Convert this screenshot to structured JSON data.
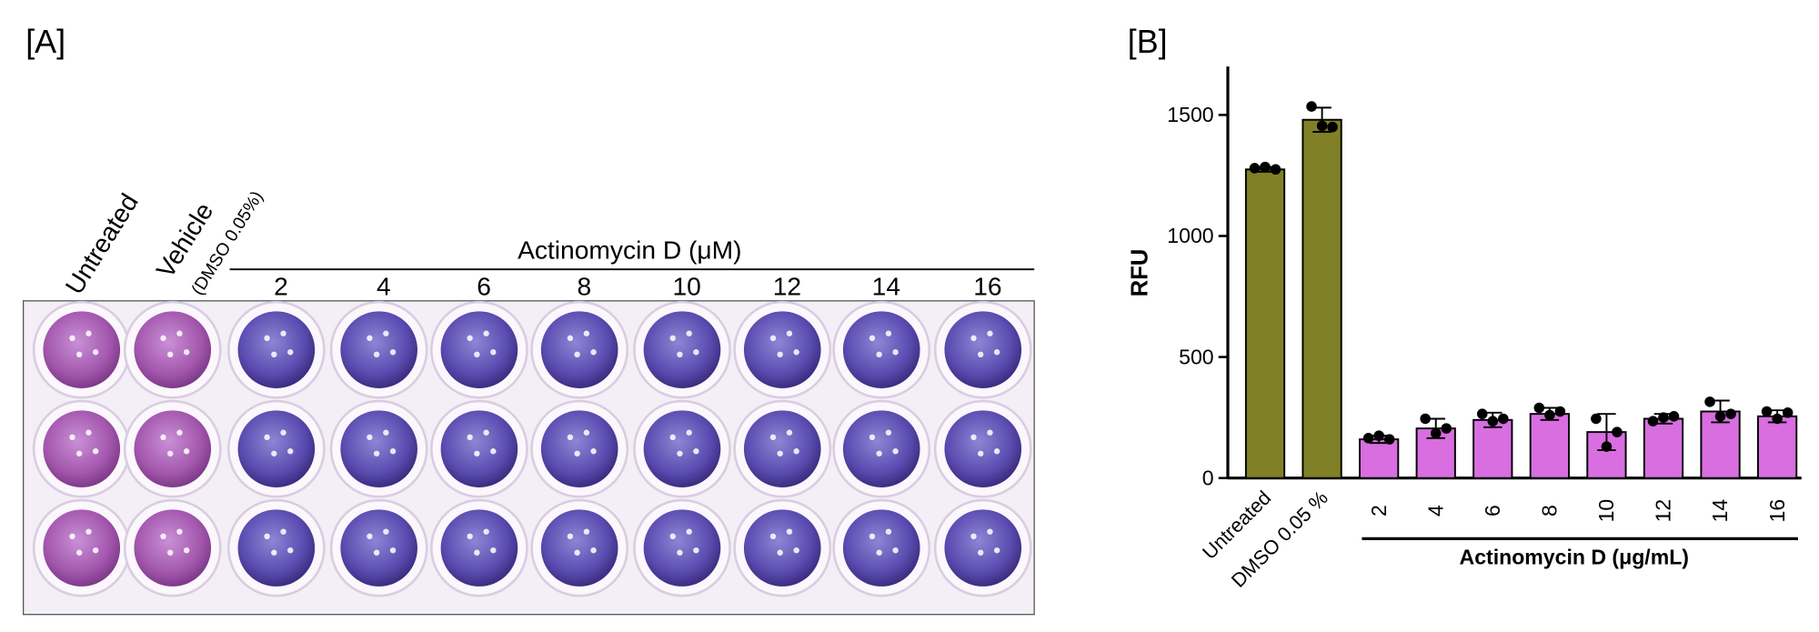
{
  "panel_a": {
    "label": "[A]",
    "untreated_label": "Untreated",
    "vehicle_label": "Vehicle",
    "vehicle_note": "(DMSO 0.05%)",
    "group_label": "Actinomycin D (μM)",
    "concentrations": [
      2,
      4,
      6,
      8,
      10,
      12,
      14,
      16
    ]
  },
  "chart_data": {
    "type": "bar",
    "label": "[B]",
    "y_label": "RFU",
    "group_label": "Actinomycin D (μg/mL)",
    "categories": [
      "Untreated",
      "DMSO 0.05 %",
      "2",
      "4",
      "6",
      "8",
      "10",
      "12",
      "14",
      "16"
    ],
    "values": [
      1275,
      1480,
      160,
      205,
      240,
      265,
      190,
      245,
      275,
      255
    ],
    "errors": [
      10,
      50,
      15,
      40,
      30,
      25,
      75,
      20,
      45,
      25
    ],
    "points": [
      [
        1280,
        1285,
        1275
      ],
      [
        1535,
        1455,
        1450
      ],
      [
        165,
        175,
        160
      ],
      [
        245,
        185,
        205
      ],
      [
        265,
        235,
        245
      ],
      [
        290,
        260,
        275
      ],
      [
        245,
        130,
        190
      ],
      [
        235,
        250,
        255
      ],
      [
        315,
        255,
        265
      ],
      [
        275,
        245,
        270
      ]
    ],
    "colors": [
      "#808026",
      "#808026",
      "#d86ee0",
      "#d86ee0",
      "#d86ee0",
      "#d86ee0",
      "#d86ee0",
      "#d86ee0",
      "#d86ee0",
      "#d86ee0"
    ],
    "ylim": [
      0,
      1700
    ],
    "yticks": [
      0,
      500,
      1000,
      1500
    ]
  }
}
